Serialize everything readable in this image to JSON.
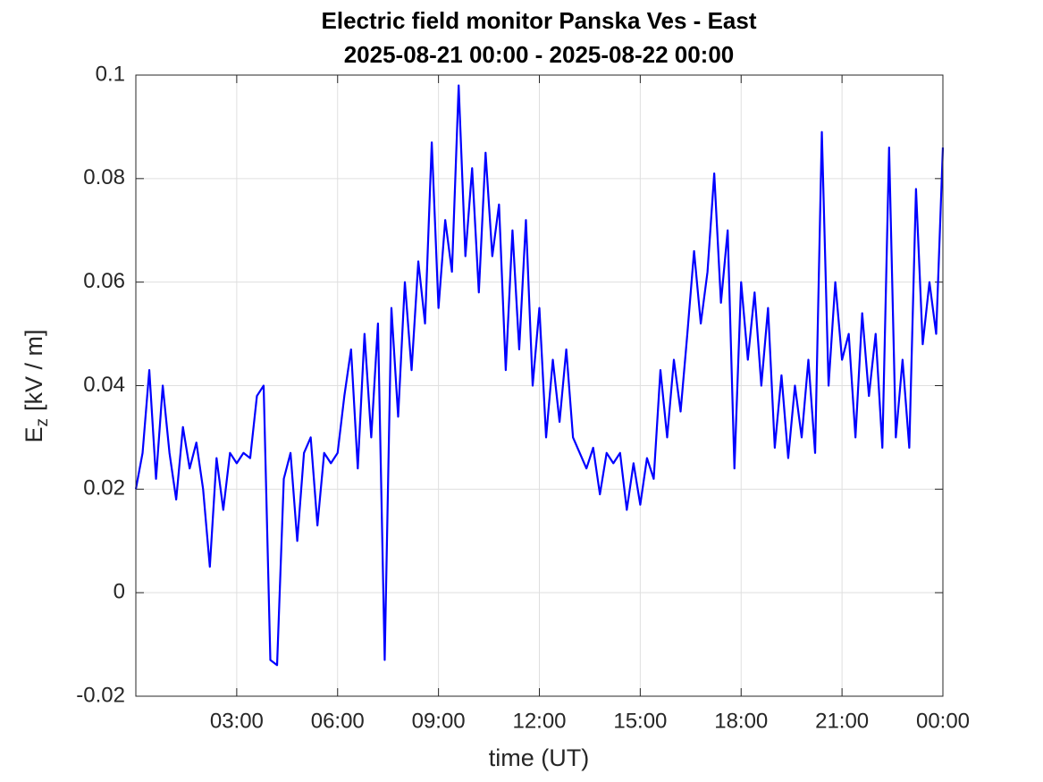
{
  "chart_data": {
    "type": "line",
    "title": "Electric field monitor Panska Ves - East",
    "subtitle": "2025-08-21 00:00 - 2025-08-22 00:00",
    "xlabel": "time (UT)",
    "ylabel": {
      "base": "E",
      "subscript": "z",
      "unit": "[kV / m]"
    },
    "color": "#0000ff",
    "grid": true,
    "xlim": [
      0,
      24
    ],
    "xticks": [
      {
        "value": 3,
        "label": "03:00"
      },
      {
        "value": 6,
        "label": "06:00"
      },
      {
        "value": 9,
        "label": "09:00"
      },
      {
        "value": 12,
        "label": "12:00"
      },
      {
        "value": 15,
        "label": "15:00"
      },
      {
        "value": 18,
        "label": "18:00"
      },
      {
        "value": 21,
        "label": "21:00"
      },
      {
        "value": 24,
        "label": "00:00"
      }
    ],
    "ylim": [
      -0.02,
      0.1
    ],
    "yticks": [
      -0.02,
      0,
      0.02,
      0.04,
      0.06,
      0.08,
      0.1
    ],
    "x": [
      0,
      0.2,
      0.4,
      0.6,
      0.8,
      1,
      1.2,
      1.4,
      1.6,
      1.8,
      2,
      2.2,
      2.4,
      2.6,
      2.8,
      3,
      3.2,
      3.4,
      3.6,
      3.8,
      4,
      4.2,
      4.4,
      4.6,
      4.8,
      5,
      5.2,
      5.4,
      5.6,
      5.8,
      6,
      6.2,
      6.4,
      6.6,
      6.8,
      7,
      7.2,
      7.4,
      7.6,
      7.8,
      8,
      8.2,
      8.4,
      8.6,
      8.8,
      9,
      9.2,
      9.4,
      9.6,
      9.8,
      10,
      10.2,
      10.4,
      10.6,
      10.8,
      11,
      11.2,
      11.4,
      11.6,
      11.8,
      12,
      12.2,
      12.4,
      12.6,
      12.8,
      13,
      13.2,
      13.4,
      13.6,
      13.8,
      14,
      14.2,
      14.4,
      14.6,
      14.8,
      15,
      15.2,
      15.4,
      15.6,
      15.8,
      16,
      16.2,
      16.4,
      16.6,
      16.8,
      17,
      17.2,
      17.4,
      17.6,
      17.8,
      18,
      18.2,
      18.4,
      18.6,
      18.8,
      19,
      19.2,
      19.4,
      19.6,
      19.8,
      20,
      20.2,
      20.4,
      20.6,
      20.8,
      21,
      21.2,
      21.4,
      21.6,
      21.8,
      22,
      22.2,
      22.4,
      22.6,
      22.8,
      23,
      23.2,
      23.4,
      23.6,
      23.8,
      24
    ],
    "values": [
      0.02,
      0.027,
      0.043,
      0.022,
      0.04,
      0.027,
      0.018,
      0.032,
      0.024,
      0.029,
      0.02,
      0.005,
      0.026,
      0.016,
      0.027,
      0.025,
      0.027,
      0.026,
      0.038,
      0.04,
      -0.013,
      -0.014,
      0.022,
      0.027,
      0.01,
      0.027,
      0.03,
      0.013,
      0.027,
      0.025,
      0.027,
      0.038,
      0.047,
      0.024,
      0.05,
      0.03,
      0.052,
      -0.013,
      0.055,
      0.034,
      0.06,
      0.043,
      0.064,
      0.052,
      0.087,
      0.055,
      0.072,
      0.062,
      0.098,
      0.065,
      0.082,
      0.058,
      0.085,
      0.065,
      0.075,
      0.043,
      0.07,
      0.047,
      0.072,
      0.04,
      0.055,
      0.03,
      0.045,
      0.033,
      0.047,
      0.03,
      0.027,
      0.024,
      0.028,
      0.019,
      0.027,
      0.025,
      0.027,
      0.016,
      0.025,
      0.017,
      0.026,
      0.022,
      0.043,
      0.03,
      0.045,
      0.035,
      0.05,
      0.066,
      0.052,
      0.062,
      0.081,
      0.056,
      0.07,
      0.024,
      0.06,
      0.045,
      0.058,
      0.04,
      0.055,
      0.028,
      0.042,
      0.026,
      0.04,
      0.03,
      0.045,
      0.027,
      0.089,
      0.04,
      0.06,
      0.045,
      0.05,
      0.03,
      0.054,
      0.038,
      0.05,
      0.028,
      0.086,
      0.03,
      0.045,
      0.028,
      0.078,
      0.048,
      0.06,
      0.05,
      0.086
    ]
  }
}
